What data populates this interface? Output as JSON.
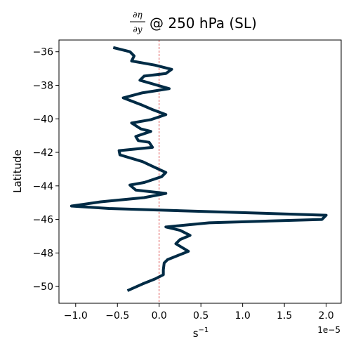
{
  "chart_data": {
    "type": "line",
    "title": {
      "numerator": "∂η",
      "denominator": "∂y",
      "suffix": "@ 250 hPa (SL)"
    },
    "xlabel": "s",
    "xlabel_superscript": "−1",
    "ylabel": "Latitude",
    "x_offset_label": "1e−5",
    "x_scale": 1e-05,
    "xlim": [
      -1.2,
      2.18
    ],
    "ylim": [
      -51.0,
      -35.3
    ],
    "xticks": [
      -1.0,
      -0.5,
      0.0,
      0.5,
      1.0,
      1.5,
      2.0
    ],
    "xtick_labels": [
      "−1.0",
      "−0.5",
      "0.0",
      "0.5",
      "1.0",
      "1.5",
      "2.0"
    ],
    "yticks": [
      -36,
      -38,
      -40,
      -42,
      -44,
      -46,
      -48,
      -50
    ],
    "ytick_labels": [
      "−36",
      "−38",
      "−40",
      "−42",
      "−44",
      "−46",
      "−48",
      "−50"
    ],
    "grid": false,
    "reference_line": {
      "x": 0.0,
      "color": "#d62728",
      "style": "dashed"
    },
    "series": [
      {
        "color": "#002b45",
        "points": [
          [
            -0.55,
            -35.75
          ],
          [
            -0.35,
            -36.0
          ],
          [
            -0.3,
            -36.25
          ],
          [
            -0.33,
            -36.55
          ],
          [
            -0.05,
            -36.8
          ],
          [
            0.15,
            -37.05
          ],
          [
            0.08,
            -37.3
          ],
          [
            -0.18,
            -37.45
          ],
          [
            -0.23,
            -37.7
          ],
          [
            0.12,
            -38.2
          ],
          [
            -0.2,
            -38.45
          ],
          [
            -0.43,
            -38.75
          ],
          [
            -0.22,
            -39.15
          ],
          [
            -0.08,
            -39.45
          ],
          [
            0.08,
            -39.75
          ],
          [
            -0.1,
            -40.05
          ],
          [
            -0.33,
            -40.25
          ],
          [
            -0.22,
            -40.6
          ],
          [
            -0.1,
            -40.75
          ],
          [
            -0.28,
            -41.05
          ],
          [
            -0.25,
            -41.3
          ],
          [
            -0.12,
            -41.4
          ],
          [
            -0.08,
            -41.7
          ],
          [
            -0.48,
            -41.9
          ],
          [
            -0.47,
            -42.15
          ],
          [
            -0.2,
            -42.55
          ],
          [
            -0.05,
            -42.9
          ],
          [
            0.08,
            -43.2
          ],
          [
            0.03,
            -43.45
          ],
          [
            -0.18,
            -43.8
          ],
          [
            -0.35,
            -43.95
          ],
          [
            -0.28,
            -44.25
          ],
          [
            0.08,
            -44.45
          ],
          [
            -0.18,
            -44.7
          ],
          [
            -0.7,
            -44.95
          ],
          [
            -1.05,
            -45.2
          ],
          [
            -0.6,
            -45.35
          ],
          [
            2.0,
            -45.75
          ],
          [
            1.95,
            -46.0
          ],
          [
            0.6,
            -46.2
          ],
          [
            0.08,
            -46.45
          ],
          [
            0.25,
            -46.65
          ],
          [
            0.37,
            -46.95
          ],
          [
            0.25,
            -47.2
          ],
          [
            0.2,
            -47.45
          ],
          [
            0.35,
            -47.9
          ],
          [
            0.2,
            -48.2
          ],
          [
            0.1,
            -48.4
          ],
          [
            0.06,
            -48.6
          ],
          [
            0.05,
            -49.0
          ],
          [
            0.05,
            -49.3
          ],
          [
            -0.05,
            -49.55
          ],
          [
            -0.2,
            -49.85
          ],
          [
            -0.38,
            -50.25
          ]
        ]
      }
    ]
  }
}
